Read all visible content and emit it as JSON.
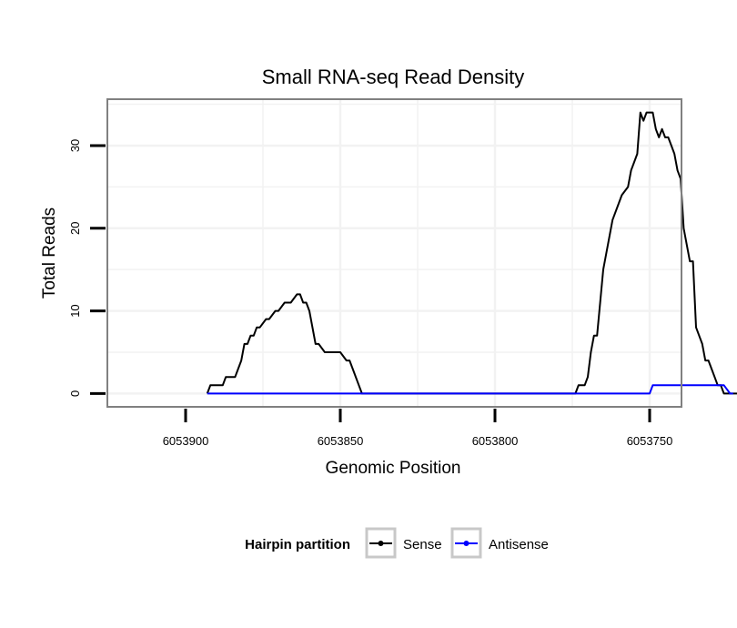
{
  "chart_data": {
    "type": "line",
    "title": "Small RNA-seq Read Density",
    "xlabel": "Genomic Position",
    "ylabel": "Total Reads",
    "x_reversed": true,
    "xlim": [
      6053925,
      6053740
    ],
    "ylim": [
      -1.5,
      35.5
    ],
    "x_ticks": [
      6053900,
      6053850,
      6053800,
      6053750
    ],
    "x_tick_labels": [
      "6053900",
      "6053850",
      "6053800",
      "6053750"
    ],
    "y_ticks": [
      0,
      10,
      20,
      30
    ],
    "y_tick_labels": [
      "0",
      "10",
      "20",
      "30"
    ],
    "grid": true,
    "legend": {
      "title": "Hairpin partition",
      "position": "bottom",
      "entries": [
        {
          "name": "Sense",
          "color": "#000000"
        },
        {
          "name": "Antisense",
          "color": "#0000ff"
        }
      ]
    },
    "series": [
      {
        "name": "Sense",
        "color": "#000000",
        "x": [
          6053893,
          6053892,
          6053888,
          6053887,
          6053884,
          6053883,
          6053882,
          6053881,
          6053880,
          6053879,
          6053878,
          6053877,
          6053876,
          6053874,
          6053873,
          6053871,
          6053870,
          6053868,
          6053867,
          6053866,
          6053864,
          6053863,
          6053862,
          6053861,
          6053860,
          6053859,
          6053858,
          6053857,
          6053855,
          6053850,
          6053848,
          6053847,
          6053846,
          6053844,
          6053843,
          6053774,
          6053773,
          6053771,
          6053770,
          6053769,
          6053768,
          6053767,
          6053765,
          6053764,
          6053763,
          6053762,
          6053760,
          6053759,
          6053757,
          6053756,
          6053755,
          6053754,
          6053753,
          6053752,
          6053751,
          6053749,
          6053748,
          6053747,
          6053746,
          6053745,
          6053744,
          6053743,
          6053742,
          6053741,
          6053740,
          6053739,
          6053738,
          6053737,
          6053736,
          6053735,
          6053734,
          6053733,
          6053732,
          6053731,
          6053730,
          6053729,
          6053728,
          6053727,
          6053726,
          6053725,
          6053723,
          6053721
        ],
        "y": [
          0,
          1,
          1,
          2,
          2,
          3,
          4,
          6,
          6,
          7,
          7,
          8,
          8,
          9,
          9,
          10,
          10,
          11,
          11,
          11,
          12,
          12,
          11,
          11,
          10,
          8,
          6,
          6,
          5,
          5,
          4,
          4,
          3,
          1,
          0,
          0,
          1,
          1,
          2,
          5,
          7,
          7,
          15,
          17,
          19,
          21,
          23,
          24,
          25,
          27,
          28,
          29,
          34,
          33,
          34,
          34,
          32,
          31,
          32,
          31,
          31,
          30,
          29,
          27,
          26,
          20,
          18,
          16,
          16,
          8,
          7,
          6,
          4,
          4,
          3,
          2,
          1,
          1,
          0,
          0,
          0,
          0
        ]
      },
      {
        "name": "Antisense",
        "color": "#0000ff",
        "x": [
          6053893,
          6053843,
          6053774,
          6053750,
          6053749,
          6053736,
          6053727,
          6053726,
          6053724,
          6053723
        ],
        "y": [
          0,
          0,
          0,
          0,
          1,
          1,
          1,
          1,
          0,
          0
        ]
      }
    ]
  }
}
